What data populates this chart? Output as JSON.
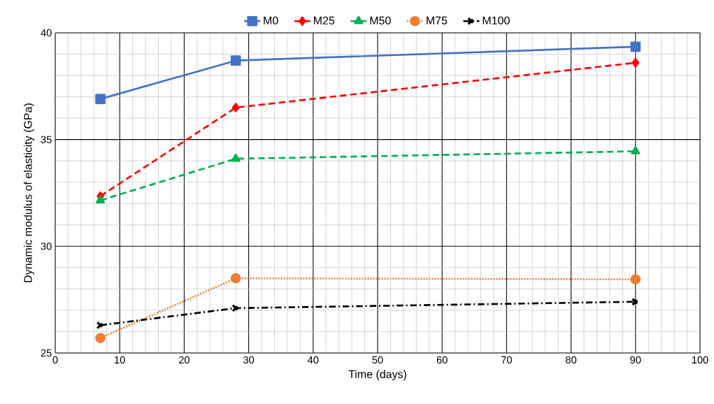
{
  "chart_data": {
    "type": "line",
    "xlabel": "Time (days)",
    "ylabel": "Dynamic modulus of elasticity (GPa)",
    "x": [
      7,
      28,
      90
    ],
    "series": [
      {
        "name": "M0",
        "color": "#4472c4",
        "values": [
          36.9,
          38.7,
          39.35
        ],
        "marker": "square",
        "line_style": "solid"
      },
      {
        "name": "M25",
        "color": "#ff0000",
        "values": [
          32.35,
          36.5,
          38.6
        ],
        "marker": "diamond",
        "line_style": "dashed"
      },
      {
        "name": "M50",
        "color": "#00b050",
        "values": [
          32.15,
          34.1,
          34.45
        ],
        "marker": "triangle",
        "line_style": "dashed"
      },
      {
        "name": "M75",
        "color": "#ed7d31",
        "values": [
          25.7,
          28.5,
          28.45
        ],
        "marker": "circle",
        "line_style": "dotted"
      },
      {
        "name": "M100",
        "color": "#000000",
        "values": [
          26.3,
          27.1,
          27.4
        ],
        "marker": "cross",
        "line_style": "dashdot"
      }
    ],
    "xlim": [
      0,
      100
    ],
    "xticks": [
      0,
      10,
      20,
      30,
      40,
      50,
      60,
      70,
      80,
      90,
      100
    ],
    "ylim": [
      25,
      40
    ],
    "yticks": [
      25,
      30,
      35,
      40
    ],
    "grid": true,
    "legend": "top"
  }
}
